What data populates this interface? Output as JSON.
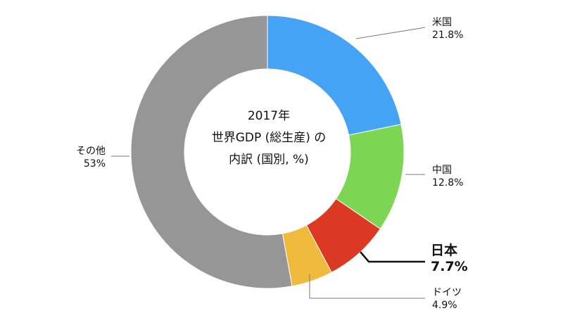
{
  "chart_data": {
    "type": "pie",
    "title_lines": [
      "2017年",
      "世界GDP (総生産) の",
      "内訳 (国別, %)"
    ],
    "categories": [
      "米国",
      "中国",
      "日本",
      "ドイツ",
      "その他"
    ],
    "values": [
      21.8,
      12.8,
      7.7,
      4.9,
      53
    ],
    "value_labels": [
      "21.8%",
      "12.8%",
      "7.7%",
      "4.9%",
      "53%"
    ],
    "colors": [
      "#45a3f5",
      "#7dd653",
      "#db3923",
      "#f0bb3c",
      "#969696"
    ],
    "highlight": "日本",
    "donut": true
  }
}
